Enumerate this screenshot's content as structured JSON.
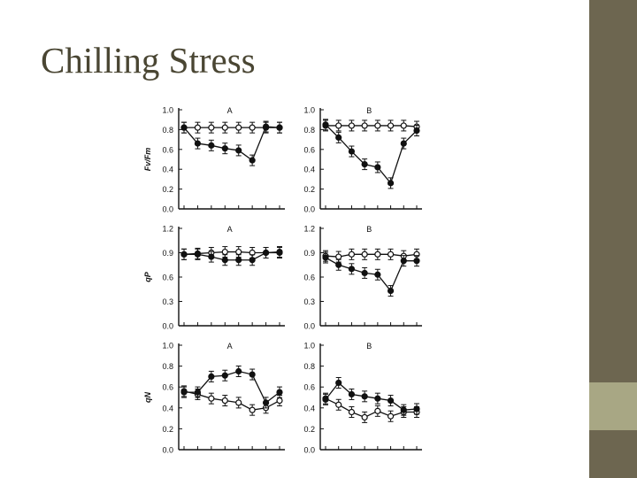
{
  "slide": {
    "title": "Chilling Stress"
  },
  "colors": {
    "title": "#4a4633",
    "sidebar_dark": "#6d6650",
    "sidebar_accent": "#a8a784",
    "ink": "#111111"
  },
  "chart_data": [
    {
      "type": "line",
      "panel": "A",
      "ylabel": "Fv/Fm",
      "ylim": [
        0,
        1.0
      ],
      "yticks": [
        "1.0",
        "0.8",
        "0.6",
        "0.4",
        "0.2",
        "0.0"
      ],
      "tickvals": [
        1.0,
        0.8,
        0.6,
        0.4,
        0.2,
        0.0
      ],
      "x": [
        1,
        2,
        3,
        4,
        5,
        6,
        7,
        8
      ],
      "series": [
        {
          "marker": "open",
          "values": [
            0.82,
            0.82,
            0.82,
            0.82,
            0.82,
            0.82,
            0.82,
            0.82
          ]
        },
        {
          "marker": "filled",
          "values": [
            0.82,
            0.66,
            0.64,
            0.61,
            0.59,
            0.49,
            0.83,
            0.82
          ]
        }
      ]
    },
    {
      "type": "line",
      "panel": "B",
      "ylabel": "",
      "ylim": [
        0,
        1.0
      ],
      "yticks": [
        "1.0",
        "0.8",
        "0.6",
        "0.4",
        "0.2",
        "0.0"
      ],
      "tickvals": [
        1.0,
        0.8,
        0.6,
        0.4,
        0.2,
        0.0
      ],
      "x": [
        1,
        2,
        3,
        4,
        5,
        6,
        7,
        8
      ],
      "series": [
        {
          "marker": "open",
          "values": [
            0.84,
            0.84,
            0.84,
            0.84,
            0.84,
            0.84,
            0.84,
            0.83
          ]
        },
        {
          "marker": "filled",
          "values": [
            0.85,
            0.72,
            0.58,
            0.45,
            0.42,
            0.26,
            0.66,
            0.79
          ]
        }
      ]
    },
    {
      "type": "line",
      "panel": "A",
      "ylabel": "qP",
      "ylim": [
        0,
        1.2
      ],
      "yticks": [
        "1.2",
        "0.9",
        "0.6",
        "0.3",
        "0.0"
      ],
      "tickvals": [
        1.2,
        0.9,
        0.6,
        0.3,
        0.0
      ],
      "x": [
        1,
        2,
        3,
        4,
        5,
        6,
        7,
        8
      ],
      "series": [
        {
          "marker": "open",
          "values": [
            0.88,
            0.89,
            0.9,
            0.91,
            0.91,
            0.9,
            0.9,
            0.91
          ]
        },
        {
          "marker": "filled",
          "values": [
            0.88,
            0.88,
            0.85,
            0.81,
            0.81,
            0.81,
            0.9,
            0.9
          ]
        }
      ]
    },
    {
      "type": "line",
      "panel": "B",
      "ylabel": "",
      "ylim": [
        0,
        1.2
      ],
      "yticks": [
        "1.2",
        "0.9",
        "0.6",
        "0.3",
        "0.0"
      ],
      "tickvals": [
        1.2,
        0.9,
        0.6,
        0.3,
        0.0
      ],
      "x": [
        1,
        2,
        3,
        4,
        5,
        6,
        7,
        8
      ],
      "series": [
        {
          "marker": "open",
          "values": [
            0.86,
            0.85,
            0.88,
            0.88,
            0.88,
            0.88,
            0.86,
            0.88
          ]
        },
        {
          "marker": "filled",
          "values": [
            0.84,
            0.75,
            0.7,
            0.65,
            0.63,
            0.43,
            0.8,
            0.8
          ]
        }
      ]
    },
    {
      "type": "line",
      "panel": "A",
      "ylabel": "qN",
      "ylim": [
        0,
        1.0
      ],
      "yticks": [
        "1.0",
        "0.8",
        "0.6",
        "0.4",
        "0.2",
        "0.0"
      ],
      "tickvals": [
        1.0,
        0.8,
        0.6,
        0.4,
        0.2,
        0.0
      ],
      "x": [
        1,
        2,
        3,
        4,
        5,
        6,
        7,
        8
      ],
      "series": [
        {
          "marker": "open",
          "values": [
            0.56,
            0.53,
            0.49,
            0.47,
            0.45,
            0.38,
            0.4,
            0.47
          ]
        },
        {
          "marker": "filled",
          "values": [
            0.55,
            0.55,
            0.7,
            0.71,
            0.75,
            0.72,
            0.45,
            0.55
          ]
        }
      ]
    },
    {
      "type": "line",
      "panel": "B",
      "ylabel": "",
      "ylim": [
        0,
        1.0
      ],
      "yticks": [
        "1.0",
        "0.8",
        "0.6",
        "0.4",
        "0.2",
        "0.0"
      ],
      "tickvals": [
        1.0,
        0.8,
        0.6,
        0.4,
        0.2,
        0.0
      ],
      "x": [
        1,
        2,
        3,
        4,
        5,
        6,
        7,
        8
      ],
      "series": [
        {
          "marker": "open",
          "values": [
            0.49,
            0.43,
            0.36,
            0.31,
            0.37,
            0.32,
            0.36,
            0.36
          ]
        },
        {
          "marker": "filled",
          "values": [
            0.48,
            0.64,
            0.53,
            0.51,
            0.49,
            0.47,
            0.38,
            0.39
          ]
        }
      ]
    }
  ]
}
